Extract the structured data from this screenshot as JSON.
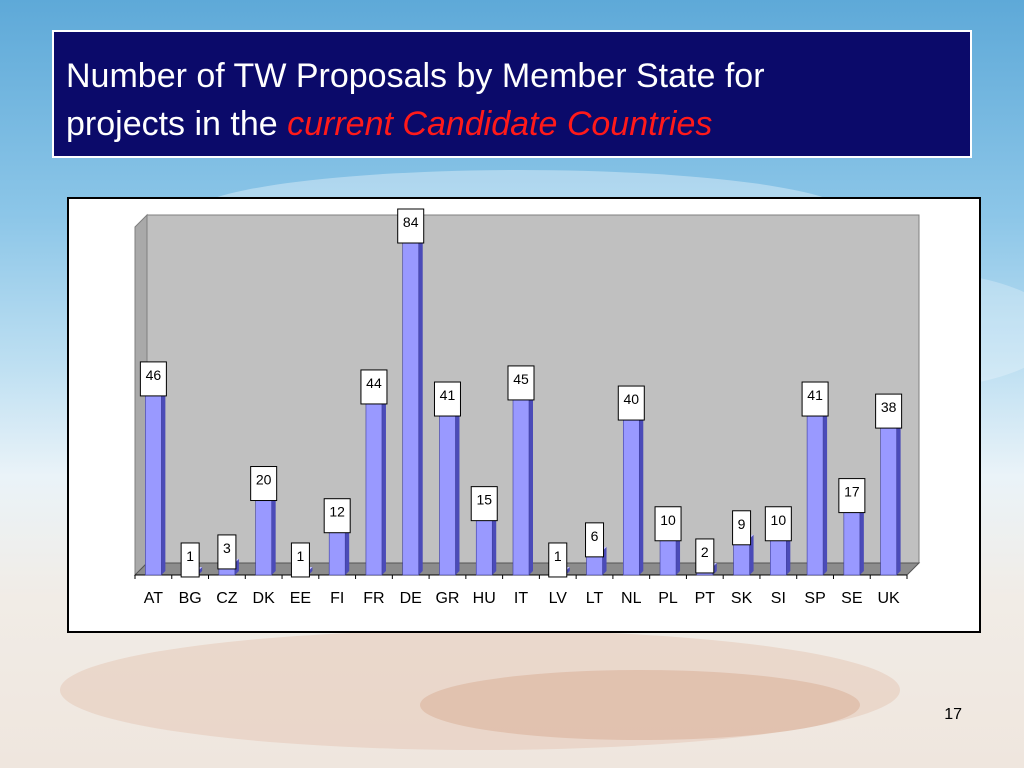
{
  "slide": {
    "title_line1": "Number of TW Proposals by Member State for",
    "title_line2_plain": "projects in the",
    "title_line2_accent": "current Candidate Countries",
    "page_number": "17"
  },
  "colors": {
    "title_bg": "#0b0a6a",
    "title_accent": "#ff1a1a",
    "bar_front": "#9999ff",
    "bar_side": "#4b4bb8",
    "bar_top": "#c8c8ff",
    "plot_back": "#c0c0c0",
    "plot_wall": "#a9a9a9"
  },
  "chart_data": {
    "type": "bar",
    "categories": [
      "AT",
      "BG",
      "CZ",
      "DK",
      "EE",
      "FI",
      "FR",
      "DE",
      "GR",
      "HU",
      "IT",
      "LV",
      "LT",
      "NL",
      "PL",
      "PT",
      "SK",
      "SI",
      "SP",
      "SE",
      "UK"
    ],
    "values": [
      46,
      1,
      3,
      20,
      1,
      12,
      44,
      84,
      41,
      15,
      45,
      1,
      6,
      40,
      10,
      2,
      9,
      10,
      41,
      17,
      38
    ],
    "ylim": [
      0,
      84
    ],
    "grid": false,
    "legend": "none",
    "data_labels": true
  }
}
